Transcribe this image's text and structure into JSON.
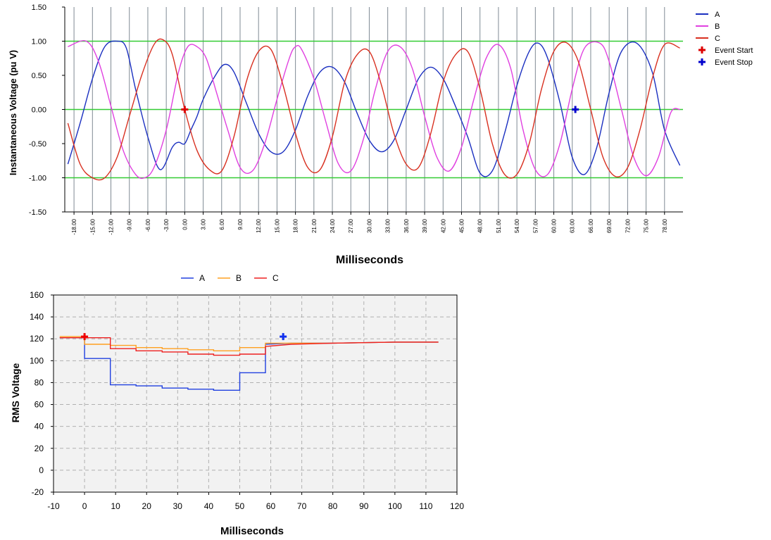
{
  "chart_data": [
    {
      "type": "line",
      "ylabel": "Instantaneous Voltage (pu V)",
      "xlabel": "Milliseconds",
      "ylim": [
        -1.5,
        1.5
      ],
      "xlim": [
        -19.5,
        81
      ],
      "y_ticks": [
        -1.5,
        -1.0,
        -0.5,
        0.0,
        0.5,
        1.0,
        1.5
      ],
      "y_tick_labels": [
        "-1.50",
        "-1.00",
        "-0.50",
        "0.00",
        "0.50",
        "1.00",
        "1.50"
      ],
      "x_ticks": [
        -18,
        -15,
        -12,
        -9,
        -6,
        -3,
        0,
        3,
        6,
        9,
        12,
        15,
        18,
        21,
        24,
        27,
        30,
        33,
        36,
        39,
        42,
        45,
        48,
        51,
        54,
        57,
        60,
        63,
        66,
        69,
        72,
        75,
        78
      ],
      "x_tick_labels": [
        "-18.00",
        "-15.00",
        "-12.00",
        "-9.00",
        "-6.00",
        "-3.00",
        "0.00",
        "3.00",
        "6.00",
        "9.00",
        "12.00",
        "15.00",
        "18.00",
        "21.00",
        "24.00",
        "27.00",
        "30.00",
        "33.00",
        "36.00",
        "39.00",
        "42.00",
        "45.00",
        "48.00",
        "51.00",
        "54.00",
        "57.00",
        "60.00",
        "63.00",
        "66.00",
        "69.00",
        "72.00",
        "75.00",
        "78.00"
      ],
      "grid": "vertical lines at x ticks; green lines at -1, 0, 1",
      "legend_position": "top-right",
      "legend": [
        "A",
        "B",
        "C",
        "Event Start",
        "Event Stop"
      ],
      "series": [
        {
          "name": "A",
          "color": "#1a2fc0",
          "x": [
            -19,
            -17,
            -15,
            -13,
            -11,
            -9.5,
            -8,
            -6,
            -4,
            -2,
            -1,
            0,
            1,
            2,
            3,
            5,
            6.5,
            8,
            10,
            12,
            14,
            16,
            18,
            20,
            22,
            24,
            26,
            28,
            30,
            32,
            34,
            36,
            38,
            40,
            42,
            44,
            46,
            48,
            50,
            52,
            54,
            56,
            57.5,
            59,
            61,
            63,
            65,
            67,
            69,
            71,
            73.5,
            76,
            78,
            80.5
          ],
          "y": [
            -0.8,
            -0.2,
            0.45,
            0.92,
            1.0,
            0.9,
            0.3,
            -0.4,
            -0.88,
            -0.55,
            -0.48,
            -0.5,
            -0.3,
            -0.1,
            0.15,
            0.5,
            0.66,
            0.55,
            0.1,
            -0.35,
            -0.62,
            -0.62,
            -0.3,
            0.2,
            0.55,
            0.62,
            0.4,
            -0.05,
            -0.45,
            -0.62,
            -0.45,
            0.0,
            0.45,
            0.62,
            0.45,
            0.05,
            -0.4,
            -0.93,
            -0.9,
            -0.35,
            0.35,
            0.85,
            0.97,
            0.75,
            0.1,
            -0.7,
            -0.95,
            -0.55,
            0.25,
            0.85,
            0.97,
            0.55,
            -0.3,
            -0.82
          ]
        },
        {
          "name": "B",
          "color": "#e040e0",
          "x": [
            -19,
            -16,
            -14,
            -12,
            -10,
            -8,
            -6.5,
            -5,
            -3,
            -1,
            0.5,
            2,
            3.5,
            5,
            7,
            9,
            11,
            13,
            15,
            17,
            18,
            19,
            21,
            23,
            25,
            27,
            29,
            31,
            33,
            35,
            37,
            39,
            41,
            43,
            45,
            47,
            49,
            51,
            53,
            55,
            57,
            59,
            61,
            63,
            65,
            67.5,
            69,
            71,
            73,
            75,
            77,
            79,
            80.5
          ],
          "y": [
            0.92,
            1.0,
            0.7,
            0.05,
            -0.6,
            -0.95,
            -1.0,
            -0.85,
            -0.3,
            0.55,
            0.92,
            0.92,
            0.75,
            0.3,
            -0.3,
            -0.85,
            -0.9,
            -0.5,
            0.15,
            0.75,
            0.92,
            0.88,
            0.45,
            -0.2,
            -0.8,
            -0.9,
            -0.45,
            0.3,
            0.85,
            0.92,
            0.6,
            -0.1,
            -0.7,
            -0.9,
            -0.55,
            0.15,
            0.75,
            0.95,
            0.6,
            -0.3,
            -0.88,
            -0.95,
            -0.5,
            0.3,
            0.9,
            0.97,
            0.7,
            0.0,
            -0.7,
            -0.97,
            -0.7,
            -0.05,
            0.0
          ]
        },
        {
          "name": "C",
          "color": "#d83020",
          "x": [
            -19,
            -17,
            -15,
            -13,
            -11,
            -9,
            -7,
            -5,
            -3.5,
            -2,
            0,
            2,
            4,
            6,
            8,
            10,
            12,
            14,
            16,
            18,
            20,
            22,
            24,
            26,
            28,
            30,
            32,
            34,
            36,
            38,
            40,
            42,
            44,
            46,
            48,
            50,
            52,
            54,
            56,
            58,
            60,
            62,
            64,
            66,
            68,
            70,
            72,
            74,
            76,
            78,
            80.5
          ],
          "y": [
            -0.2,
            -0.8,
            -1.0,
            -1.0,
            -0.7,
            -0.1,
            0.5,
            0.95,
            1.02,
            0.8,
            0.0,
            -0.6,
            -0.88,
            -0.9,
            -0.4,
            0.4,
            0.85,
            0.88,
            0.35,
            -0.35,
            -0.85,
            -0.88,
            -0.4,
            0.4,
            0.8,
            0.85,
            0.35,
            -0.35,
            -0.8,
            -0.85,
            -0.35,
            0.4,
            0.8,
            0.85,
            0.3,
            -0.5,
            -0.95,
            -0.95,
            -0.5,
            0.3,
            0.85,
            0.98,
            0.7,
            0.0,
            -0.7,
            -0.98,
            -0.85,
            -0.3,
            0.45,
            0.95,
            0.9
          ]
        }
      ],
      "markers": [
        {
          "name": "Event Start",
          "x": 0,
          "y": 0,
          "color": "#dd0000",
          "symbol": "+"
        },
        {
          "name": "Event Stop",
          "x": 63.5,
          "y": 0,
          "color": "#0000cc",
          "symbol": "+"
        }
      ]
    },
    {
      "type": "line",
      "ylabel": "RMS Voltage",
      "xlabel": "Milliseconds",
      "xlim": [
        -10,
        120
      ],
      "ylim": [
        -20,
        160
      ],
      "x_ticks": [
        -10,
        0,
        10,
        20,
        30,
        40,
        50,
        60,
        70,
        80,
        90,
        100,
        110,
        120
      ],
      "y_ticks": [
        -20,
        0,
        20,
        40,
        60,
        80,
        100,
        120,
        140,
        160
      ],
      "grid": "dashed both axes",
      "legend_position": "top",
      "legend": [
        "A",
        "B",
        "C"
      ],
      "series": [
        {
          "name": "A",
          "color": "#2040e0",
          "step": true,
          "x": [
            -8,
            0,
            0,
            8.3,
            8.3,
            16.6,
            16.6,
            25,
            25,
            33.3,
            33.3,
            41.6,
            41.6,
            50,
            50,
            58.3,
            58.3,
            66.6,
            80,
            100,
            114
          ],
          "y": [
            121,
            121,
            102,
            102,
            78,
            78,
            77,
            77,
            75,
            75,
            74,
            74,
            73,
            73,
            89,
            89,
            115,
            116,
            116,
            117,
            117
          ]
        },
        {
          "name": "B",
          "color": "#ffa020",
          "step": true,
          "x": [
            -8,
            0,
            0,
            8.3,
            8.3,
            16.6,
            16.6,
            25,
            25,
            33.3,
            33.3,
            41.6,
            41.6,
            50,
            50,
            58.3,
            58.3,
            66.6,
            80,
            100,
            114
          ],
          "y": [
            122,
            122,
            115,
            115,
            114,
            114,
            112,
            112,
            111,
            111,
            110,
            110,
            109,
            109,
            112,
            112,
            116,
            116,
            116,
            117,
            117
          ]
        },
        {
          "name": "C",
          "color": "#ee2020",
          "step": true,
          "x": [
            -8,
            0,
            0,
            8.3,
            8.3,
            16.6,
            16.6,
            25,
            25,
            33.3,
            33.3,
            41.6,
            41.6,
            50,
            50,
            58.3,
            58.3,
            66.6,
            80,
            100,
            114
          ],
          "y": [
            121,
            121,
            121,
            121,
            111,
            111,
            109,
            109,
            108,
            108,
            106,
            106,
            105,
            105,
            106,
            106,
            113,
            115,
            116,
            117,
            117
          ]
        }
      ],
      "markers": [
        {
          "name": "Event Start",
          "x": 0,
          "y": 122,
          "color": "#ee0000",
          "symbol": "+"
        },
        {
          "name": "Event Stop",
          "x": 64,
          "y": 122,
          "color": "#1030ee",
          "symbol": "+"
        }
      ]
    }
  ]
}
